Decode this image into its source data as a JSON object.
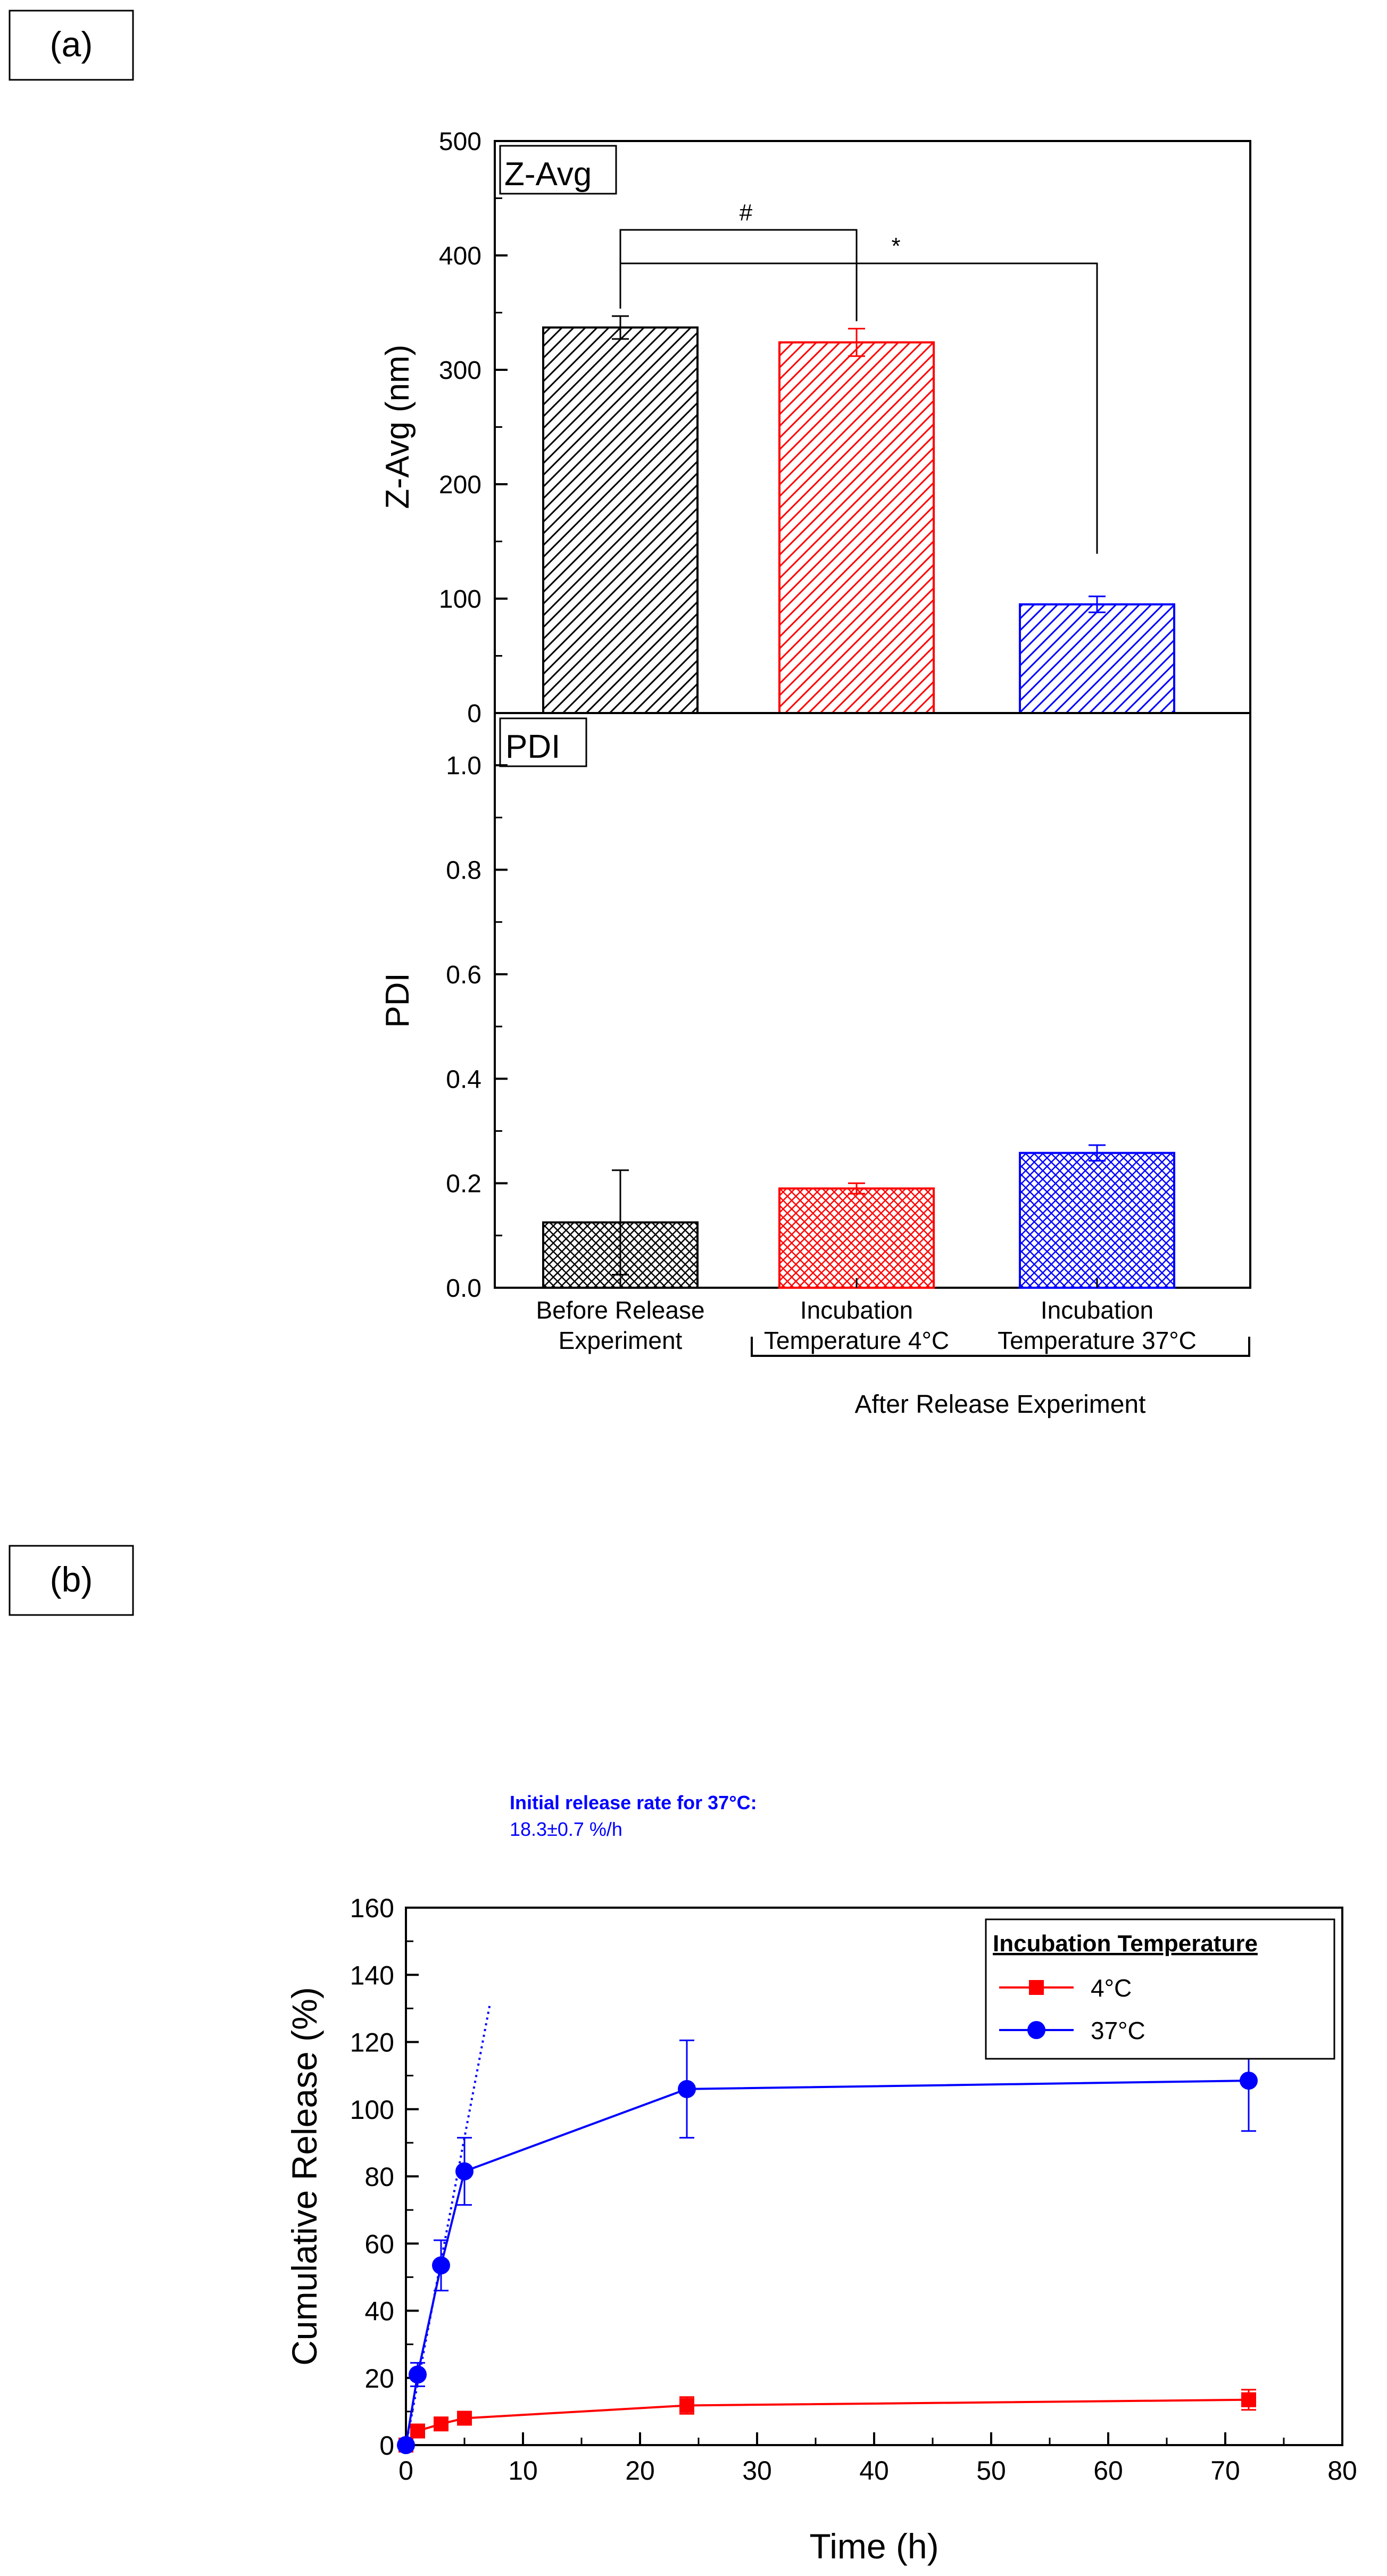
{
  "panel_labels": {
    "a": "(a)",
    "b": "(b)"
  },
  "colors": {
    "before": "#000000",
    "temp4": "#ff0000",
    "temp37": "#0000ff",
    "axis": "#000000"
  },
  "chart_data": [
    {
      "id": "zavg",
      "type": "bar",
      "title": "Z-Avg",
      "xlabel": "",
      "ylabel": "Z-Avg (nm)",
      "ylim": [
        0,
        500
      ],
      "yticks": [
        0,
        100,
        200,
        300,
        400,
        500
      ],
      "categories": [
        "Before Release Experiment",
        "Incubation Temperature 4°C",
        "Incubation Temperature 37°C"
      ],
      "values": [
        337,
        324,
        95
      ],
      "errors": [
        10,
        12,
        7
      ],
      "significance": [
        {
          "from": 0,
          "to": 1,
          "label": "#"
        },
        {
          "from": 0,
          "to": 2,
          "label": "*"
        }
      ]
    },
    {
      "id": "pdi",
      "type": "bar",
      "title": "PDI",
      "xlabel": "",
      "ylabel": "PDI",
      "ylim": [
        0,
        1.1
      ],
      "yticks": [
        "0.0",
        "0.2",
        "0.4",
        "0.6",
        "0.8",
        "1.0"
      ],
      "category_lines": [
        [
          "Before Release",
          "Experiment"
        ],
        [
          "Incubation",
          "Temperature 4°C"
        ],
        [
          "Incubation",
          "Temperature 37°C"
        ]
      ],
      "categories": [
        "Before Release Experiment",
        "Incubation Temperature 4°C",
        "Incubation Temperature 37°C"
      ],
      "values": [
        0.125,
        0.19,
        0.258
      ],
      "errors": [
        0.1,
        0.01,
        0.015
      ],
      "group_label": "After Release Experiment"
    },
    {
      "id": "release",
      "type": "line",
      "title": "",
      "xlabel": "Time (h)",
      "ylabel": "Cumulative Release (%)",
      "xlim": [
        0,
        80
      ],
      "ylim": [
        0,
        160
      ],
      "xticks": [
        0,
        10,
        20,
        30,
        40,
        50,
        60,
        70,
        80
      ],
      "yticks": [
        0,
        20,
        40,
        60,
        80,
        100,
        120,
        140,
        160
      ],
      "legend_title": "Incubation Temperature",
      "legend_position": "top-right",
      "series": [
        {
          "name": "4°C",
          "marker": "square",
          "x": [
            0,
            1,
            3,
            5,
            24,
            72
          ],
          "y": [
            0,
            4.2,
            6.3,
            8,
            11.8,
            13.5
          ],
          "err": [
            0,
            0.5,
            0.8,
            0.8,
            2.5,
            3
          ]
        },
        {
          "name": "37°C",
          "marker": "circle",
          "x": [
            0,
            1,
            3,
            5,
            24,
            72
          ],
          "y": [
            0,
            21,
            53.5,
            81.5,
            106,
            108.5
          ],
          "err": [
            0,
            3.5,
            7.5,
            10,
            14.5,
            15
          ]
        }
      ],
      "fit_line": {
        "slope": 18.3,
        "x_end": 7.2
      },
      "annotation": [
        "Initial release rate for 37°C:",
        "18.3±0.7 %/h"
      ]
    }
  ]
}
